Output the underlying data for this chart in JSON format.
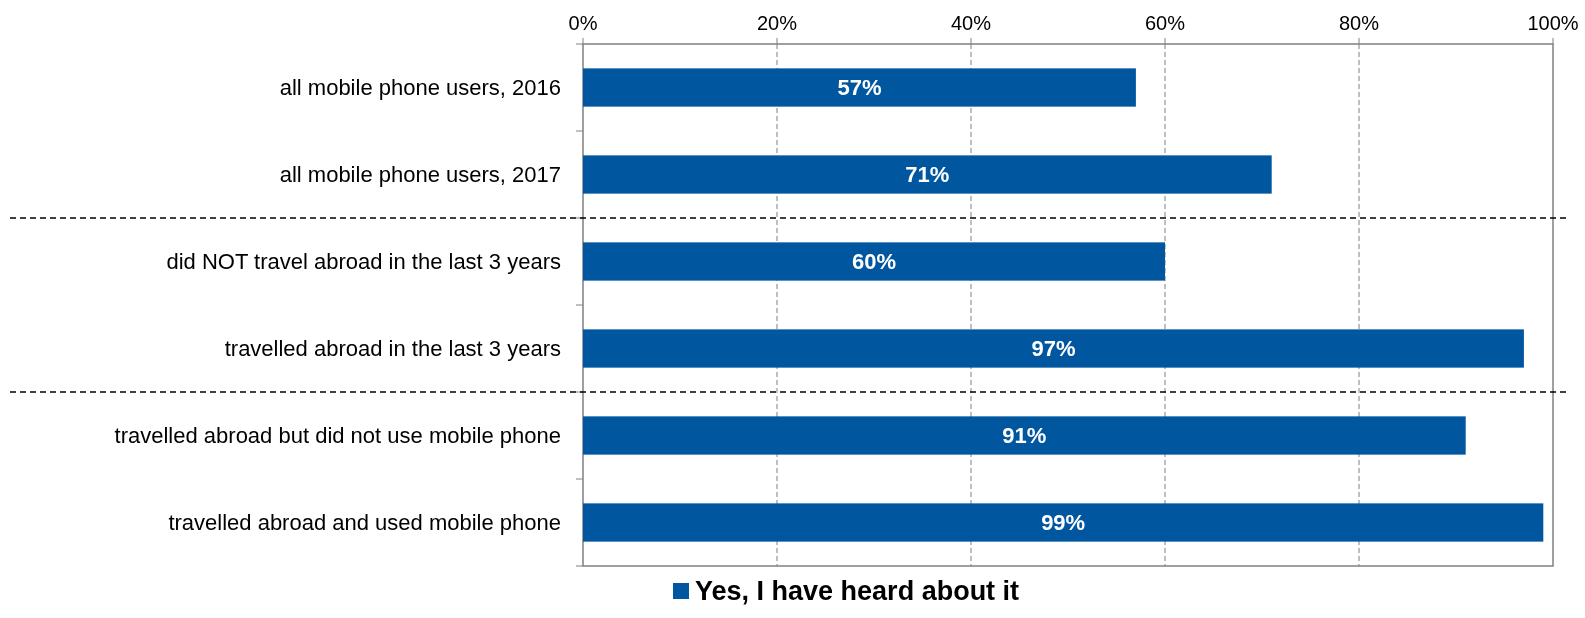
{
  "chart_data": {
    "type": "bar",
    "orientation": "horizontal",
    "categories": [
      "all mobile phone users, 2016",
      "all mobile phone users, 2017",
      "did NOT travel abroad in the last 3 years",
      "travelled abroad in the last 3 years",
      "travelled abroad but did not use mobile phone",
      "travelled abroad and used mobile phone"
    ],
    "series": [
      {
        "name": "Yes, I have heard about it",
        "color": "#0057a0",
        "values": [
          57,
          71,
          60,
          97,
          91,
          99
        ]
      }
    ],
    "value_labels": [
      "57%",
      "71%",
      "60%",
      "97%",
      "91%",
      "99%"
    ],
    "xlim": [
      0,
      100
    ],
    "xticks": [
      {
        "value": 0,
        "label": "0%"
      },
      {
        "value": 20,
        "label": "20%"
      },
      {
        "value": 40,
        "label": "40%"
      },
      {
        "value": 60,
        "label": "60%"
      },
      {
        "value": 80,
        "label": "80%"
      },
      {
        "value": 100,
        "label": "100%"
      }
    ],
    "grid": "x",
    "legend": "bottom"
  }
}
